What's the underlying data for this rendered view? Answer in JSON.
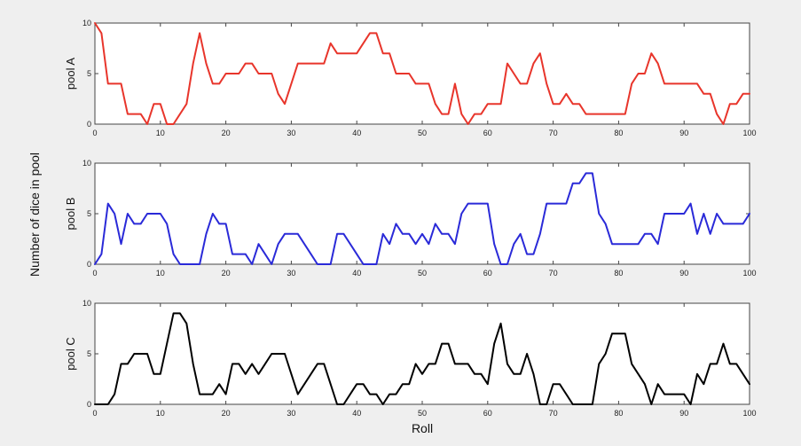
{
  "chart_data": [
    {
      "type": "line",
      "ylabel": "pool A",
      "xlim": [
        0,
        100
      ],
      "ylim": [
        0,
        10
      ],
      "xticks": [
        "0",
        "10",
        "20",
        "30",
        "40",
        "50",
        "60",
        "70",
        "80",
        "90",
        "100"
      ],
      "yticks": [
        "0",
        "5",
        "10"
      ],
      "color": "#e8352b",
      "x": [
        0,
        1,
        2,
        3,
        4,
        5,
        6,
        7,
        8,
        9,
        10,
        11,
        12,
        13,
        14,
        15,
        16,
        17,
        18,
        19,
        20,
        21,
        22,
        23,
        24,
        25,
        26,
        27,
        28,
        29,
        30,
        31,
        32,
        33,
        34,
        35,
        36,
        37,
        38,
        39,
        40,
        41,
        42,
        43,
        44,
        45,
        46,
        47,
        48,
        49,
        50,
        51,
        52,
        53,
        54,
        55,
        56,
        57,
        58,
        59,
        60,
        61,
        62,
        63,
        64,
        65,
        66,
        67,
        68,
        69,
        70,
        71,
        72,
        73,
        74,
        75,
        76,
        77,
        78,
        79,
        80,
        81,
        82,
        83,
        84,
        85,
        86,
        87,
        88,
        89,
        90,
        91,
        92,
        93,
        94,
        95,
        96,
        97,
        98,
        99,
        100
      ],
      "y": [
        10,
        9,
        4,
        4,
        4,
        1,
        1,
        1,
        0,
        2,
        2,
        0,
        0,
        1,
        2,
        6,
        9,
        6,
        4,
        4,
        5,
        5,
        5,
        6,
        6,
        5,
        5,
        5,
        3,
        2,
        4,
        6,
        6,
        6,
        6,
        6,
        8,
        7,
        7,
        7,
        7,
        8,
        9,
        9,
        7,
        7,
        5,
        5,
        5,
        4,
        4,
        4,
        2,
        1,
        1,
        4,
        1,
        0,
        1,
        1,
        2,
        2,
        2,
        6,
        5,
        4,
        4,
        6,
        7,
        4,
        2,
        2,
        3,
        2,
        2,
        1,
        1,
        1,
        1,
        1,
        1,
        1,
        4,
        5,
        5,
        7,
        6,
        4,
        4,
        4,
        4,
        4,
        4,
        3,
        3,
        1,
        0,
        2,
        2,
        3,
        3
      ]
    },
    {
      "type": "line",
      "ylabel": "pool B",
      "xlim": [
        0,
        100
      ],
      "ylim": [
        0,
        10
      ],
      "xticks": [
        "0",
        "10",
        "20",
        "30",
        "40",
        "50",
        "60",
        "70",
        "80",
        "90",
        "100"
      ],
      "yticks": [
        "0",
        "5",
        "10"
      ],
      "color": "#2a2ad8",
      "x": [
        0,
        1,
        2,
        3,
        4,
        5,
        6,
        7,
        8,
        9,
        10,
        11,
        12,
        13,
        14,
        15,
        16,
        17,
        18,
        19,
        20,
        21,
        22,
        23,
        24,
        25,
        26,
        27,
        28,
        29,
        30,
        31,
        32,
        33,
        34,
        35,
        36,
        37,
        38,
        39,
        40,
        41,
        42,
        43,
        44,
        45,
        46,
        47,
        48,
        49,
        50,
        51,
        52,
        53,
        54,
        55,
        56,
        57,
        58,
        59,
        60,
        61,
        62,
        63,
        64,
        65,
        66,
        67,
        68,
        69,
        70,
        71,
        72,
        73,
        74,
        75,
        76,
        77,
        78,
        79,
        80,
        81,
        82,
        83,
        84,
        85,
        86,
        87,
        88,
        89,
        90,
        91,
        92,
        93,
        94,
        95,
        96,
        97,
        98,
        99,
        100
      ],
      "y": [
        0,
        1,
        6,
        5,
        2,
        5,
        4,
        4,
        5,
        5,
        5,
        4,
        1,
        0,
        0,
        0,
        0,
        3,
        5,
        4,
        4,
        1,
        1,
        1,
        0,
        2,
        1,
        0,
        2,
        3,
        3,
        3,
        2,
        1,
        0,
        0,
        0,
        3,
        3,
        2,
        1,
        0,
        0,
        0,
        3,
        2,
        4,
        3,
        3,
        2,
        3,
        2,
        4,
        3,
        3,
        2,
        5,
        6,
        6,
        6,
        6,
        2,
        0,
        0,
        2,
        3,
        1,
        1,
        3,
        6,
        6,
        6,
        6,
        8,
        8,
        9,
        9,
        5,
        4,
        2,
        2,
        2,
        2,
        2,
        3,
        3,
        2,
        5,
        5,
        5,
        5,
        6,
        3,
        5,
        3,
        5,
        4,
        4,
        4,
        4,
        5
      ]
    },
    {
      "type": "line",
      "ylabel": "pool C",
      "xlabel": "Roll",
      "xlim": [
        0,
        100
      ],
      "ylim": [
        0,
        10
      ],
      "xticks": [
        "0",
        "10",
        "20",
        "30",
        "40",
        "50",
        "60",
        "70",
        "80",
        "90",
        "100"
      ],
      "yticks": [
        "0",
        "5",
        "10"
      ],
      "color": "#000000",
      "x": [
        0,
        1,
        2,
        3,
        4,
        5,
        6,
        7,
        8,
        9,
        10,
        11,
        12,
        13,
        14,
        15,
        16,
        17,
        18,
        19,
        20,
        21,
        22,
        23,
        24,
        25,
        26,
        27,
        28,
        29,
        30,
        31,
        32,
        33,
        34,
        35,
        36,
        37,
        38,
        39,
        40,
        41,
        42,
        43,
        44,
        45,
        46,
        47,
        48,
        49,
        50,
        51,
        52,
        53,
        54,
        55,
        56,
        57,
        58,
        59,
        60,
        61,
        62,
        63,
        64,
        65,
        66,
        67,
        68,
        69,
        70,
        71,
        72,
        73,
        74,
        75,
        76,
        77,
        78,
        79,
        80,
        81,
        82,
        83,
        84,
        85,
        86,
        87,
        88,
        89,
        90,
        91,
        92,
        93,
        94,
        95,
        96,
        97,
        98,
        99,
        100
      ],
      "y": [
        0,
        0,
        0,
        1,
        4,
        4,
        5,
        5,
        5,
        3,
        3,
        6,
        9,
        9,
        8,
        4,
        1,
        1,
        1,
        2,
        1,
        4,
        4,
        3,
        4,
        3,
        4,
        5,
        5,
        5,
        3,
        1,
        2,
        3,
        4,
        4,
        2,
        0,
        0,
        1,
        2,
        2,
        1,
        1,
        0,
        1,
        1,
        2,
        2,
        4,
        3,
        4,
        4,
        6,
        6,
        4,
        4,
        4,
        3,
        3,
        2,
        6,
        8,
        4,
        3,
        3,
        5,
        3,
        0,
        0,
        2,
        2,
        1,
        0,
        0,
        0,
        0,
        4,
        5,
        7,
        7,
        7,
        4,
        3,
        2,
        0,
        2,
        1,
        1,
        1,
        1,
        0,
        3,
        2,
        4,
        4,
        6,
        4,
        4,
        3,
        2
      ]
    }
  ],
  "figure": {
    "ylabel": "Number of dice in pool"
  }
}
